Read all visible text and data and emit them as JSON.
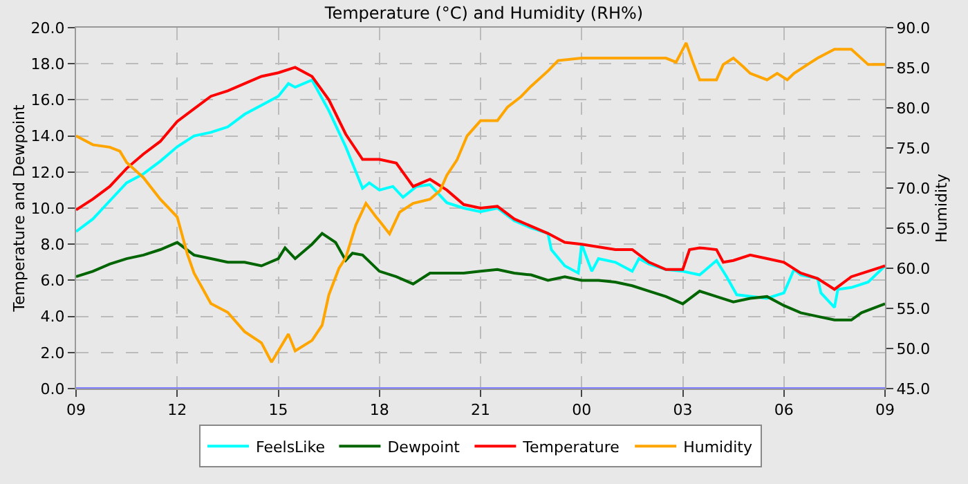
{
  "chart_data": {
    "type": "line",
    "title": "Temperature (°C) and Humidity (RH%)",
    "ylabel": "Temperature and Dewpoint",
    "y2label": "Humidity",
    "xlim": [
      9,
      33
    ],
    "xticks": [
      {
        "value": 9,
        "label": "09"
      },
      {
        "value": 12,
        "label": "12"
      },
      {
        "value": 15,
        "label": "15"
      },
      {
        "value": 18,
        "label": "18"
      },
      {
        "value": 21,
        "label": "21"
      },
      {
        "value": 24,
        "label": "00"
      },
      {
        "value": 27,
        "label": "03"
      },
      {
        "value": 30,
        "label": "06"
      },
      {
        "value": 33,
        "label": "09"
      }
    ],
    "ylim": [
      0,
      20
    ],
    "yticks": [
      {
        "value": 0,
        "label": "0.0"
      },
      {
        "value": 2,
        "label": "2.0"
      },
      {
        "value": 4,
        "label": "4.0"
      },
      {
        "value": 6,
        "label": "6.0"
      },
      {
        "value": 8,
        "label": "8.0"
      },
      {
        "value": 10,
        "label": "10.0"
      },
      {
        "value": 12,
        "label": "12.0"
      },
      {
        "value": 14,
        "label": "14.0"
      },
      {
        "value": 16,
        "label": "16.0"
      },
      {
        "value": 18,
        "label": "18.0"
      },
      {
        "value": 20,
        "label": "20.0"
      }
    ],
    "y2lim": [
      45,
      90
    ],
    "y2ticks": [
      {
        "value": 45,
        "label": "45.0"
      },
      {
        "value": 50,
        "label": "50.0"
      },
      {
        "value": 55,
        "label": "55.0"
      },
      {
        "value": 60,
        "label": "60.0"
      },
      {
        "value": 65,
        "label": "65.0"
      },
      {
        "value": 70,
        "label": "70.0"
      },
      {
        "value": 75,
        "label": "75.0"
      },
      {
        "value": 80,
        "label": "80.0"
      },
      {
        "value": 85,
        "label": "85.0"
      },
      {
        "value": 90,
        "label": "90.0"
      }
    ],
    "grid": true,
    "legend": "bottom",
    "line_style": "solid",
    "ref_lines": [
      {
        "axis": "y",
        "value": 0,
        "color": "#8080ff"
      }
    ],
    "series": [
      {
        "name": "FeelsLike",
        "color": "#00ffff",
        "x": [
          9,
          9.5,
          9.8,
          10.5,
          11,
          11.5,
          12,
          12.5,
          13,
          13.5,
          14,
          14.5,
          15,
          15.3,
          15.5,
          16,
          16.5,
          17,
          17.5,
          17.7,
          18,
          18.4,
          18.7,
          19.1,
          19.5,
          20,
          20.5,
          21,
          21.5,
          22,
          22.5,
          23,
          23.1,
          23.5,
          23.9,
          24,
          24.3,
          24.5,
          25,
          25.5,
          25.7,
          26,
          26.5,
          27,
          27.5,
          28,
          28.3,
          28.6,
          29.5,
          30,
          30.3,
          30.5,
          31,
          31.1,
          31.5,
          31.6,
          32,
          32.5,
          33
        ],
        "values": [
          8.7,
          9.4,
          10.0,
          11.4,
          11.9,
          12.6,
          13.4,
          14.0,
          14.2,
          14.5,
          15.2,
          15.7,
          16.2,
          16.9,
          16.7,
          17.1,
          15.4,
          13.4,
          11.1,
          11.4,
          11.0,
          11.2,
          10.6,
          11.2,
          11.3,
          10.3,
          10.0,
          9.8,
          10.0,
          9.3,
          8.9,
          8.6,
          7.7,
          6.8,
          6.4,
          8.0,
          6.5,
          7.2,
          7.0,
          6.5,
          7.2,
          6.9,
          6.6,
          6.5,
          6.3,
          7.1,
          6.2,
          5.2,
          5.0,
          5.3,
          6.6,
          6.3,
          6.1,
          5.3,
          4.5,
          5.5,
          5.6,
          5.9,
          6.8
        ]
      },
      {
        "name": "Dewpoint",
        "color": "#006400",
        "x": [
          9,
          9.5,
          10,
          10.5,
          11,
          11.5,
          12,
          12.5,
          13,
          13.5,
          14,
          14.5,
          15,
          15.2,
          15.5,
          16,
          16.3,
          16.7,
          17,
          17.2,
          17.5,
          18,
          18.5,
          19,
          19.5,
          20,
          20.5,
          21,
          21.5,
          22,
          22.5,
          23,
          23.5,
          24,
          24.5,
          25,
          25.5,
          26,
          26.5,
          27,
          27.5,
          28,
          28.5,
          29,
          29.5,
          30,
          30.5,
          31,
          31.5,
          32,
          32.3,
          33
        ],
        "values": [
          6.2,
          6.5,
          6.9,
          7.2,
          7.4,
          7.7,
          8.1,
          7.4,
          7.2,
          7.0,
          7.0,
          6.8,
          7.2,
          7.8,
          7.2,
          8.0,
          8.6,
          8.1,
          7.1,
          7.5,
          7.4,
          6.5,
          6.2,
          5.8,
          6.4,
          6.4,
          6.4,
          6.5,
          6.6,
          6.4,
          6.3,
          6.0,
          6.2,
          6.0,
          6.0,
          5.9,
          5.7,
          5.4,
          5.1,
          4.7,
          5.4,
          5.1,
          4.8,
          5.0,
          5.1,
          4.6,
          4.2,
          4.0,
          3.8,
          3.8,
          4.2,
          4.7
        ]
      },
      {
        "name": "Temperature",
        "color": "#ff0000",
        "x": [
          9,
          9.5,
          10,
          10.5,
          11,
          11.5,
          12,
          12.5,
          13,
          13.5,
          14,
          14.5,
          15,
          15.5,
          16,
          16.5,
          17,
          17.5,
          18,
          18.5,
          19,
          19.5,
          20,
          20.5,
          21,
          21.5,
          22,
          22.5,
          23,
          23.5,
          24,
          25,
          25.5,
          26,
          26.5,
          27,
          27.2,
          27.5,
          28,
          28.2,
          28.5,
          29,
          29.5,
          30,
          30.5,
          31,
          31.5,
          32,
          32.5,
          33
        ],
        "values": [
          9.9,
          10.5,
          11.2,
          12.2,
          13.0,
          13.7,
          14.8,
          15.5,
          16.2,
          16.5,
          16.9,
          17.3,
          17.5,
          17.8,
          17.3,
          16.0,
          14.1,
          12.7,
          12.7,
          12.5,
          11.2,
          11.6,
          11.0,
          10.2,
          10.0,
          10.1,
          9.4,
          9.0,
          8.6,
          8.1,
          8.0,
          7.7,
          7.7,
          7.0,
          6.6,
          6.6,
          7.7,
          7.8,
          7.7,
          7.0,
          7.1,
          7.4,
          7.2,
          7.0,
          6.4,
          6.1,
          5.5,
          6.2,
          6.5,
          6.8
        ]
      },
      {
        "name": "Humidity",
        "color": "#ffa500",
        "axis": "y2",
        "x": [
          9,
          9.5,
          10,
          10.3,
          10.5,
          11,
          11.5,
          12,
          12.3,
          12.5,
          13,
          13.5,
          14,
          14.5,
          14.8,
          15,
          15.3,
          15.5,
          16,
          16.3,
          16.5,
          16.8,
          17,
          17.3,
          17.6,
          17.9,
          18,
          18.3,
          18.6,
          19,
          19.5,
          19.8,
          20,
          20.3,
          20.6,
          21,
          21.5,
          21.8,
          22.2,
          22.5,
          23,
          23.3,
          24,
          25,
          26,
          26.5,
          26.8,
          27,
          27.1,
          27.3,
          27.5,
          28,
          28.2,
          28.5,
          28.8,
          29,
          29.5,
          29.8,
          30.1,
          30.3,
          30.7,
          31,
          31.5,
          32,
          32.5,
          33
        ],
        "values": [
          76.5,
          75.4,
          75.1,
          74.6,
          73.2,
          71.3,
          68.6,
          66.4,
          61.8,
          59.4,
          55.6,
          54.5,
          52.1,
          50.7,
          48.3,
          49.7,
          51.8,
          49.7,
          51.0,
          52.9,
          56.7,
          60.0,
          61.3,
          65.4,
          68.1,
          66.4,
          65.9,
          64.3,
          67.0,
          68.1,
          68.6,
          69.7,
          71.6,
          73.5,
          76.5,
          78.4,
          78.4,
          80.1,
          81.4,
          82.7,
          84.6,
          85.9,
          86.2,
          86.2,
          86.2,
          86.2,
          85.7,
          87.3,
          88.1,
          85.7,
          83.5,
          83.5,
          85.4,
          86.2,
          85.1,
          84.3,
          83.5,
          84.3,
          83.5,
          84.3,
          85.4,
          86.2,
          87.3,
          87.3,
          85.4,
          85.4
        ]
      }
    ]
  }
}
